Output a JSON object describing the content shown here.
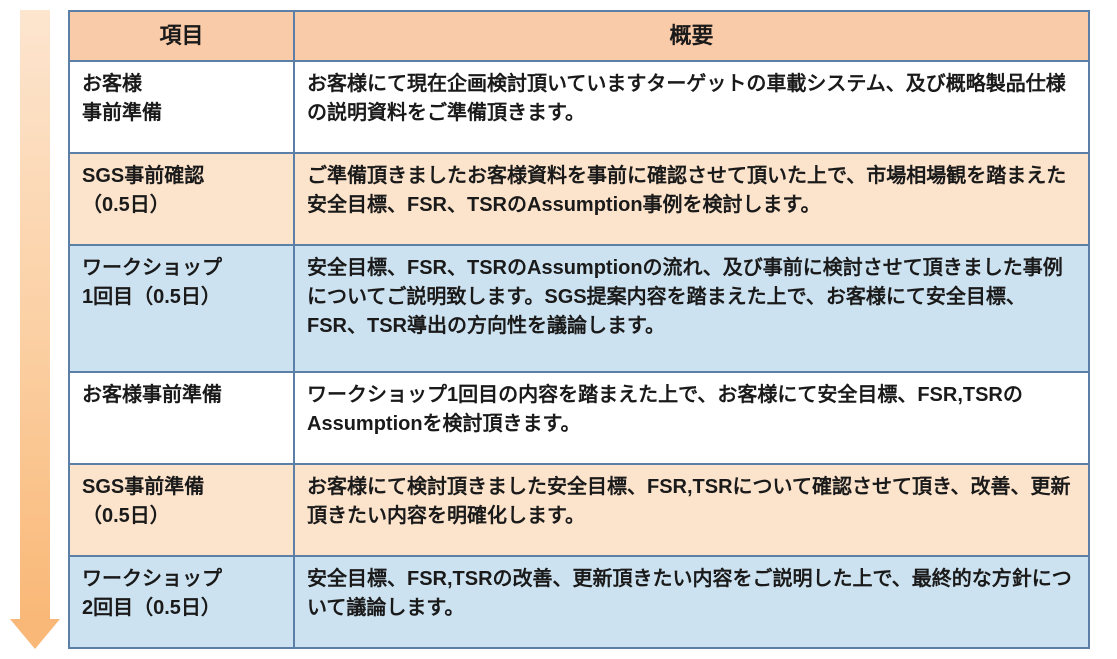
{
  "table": {
    "border_color": "#5b7fa6",
    "header_bg": "#f9cba8",
    "row_colors": {
      "white": "#ffffff",
      "peach": "#fce3cc",
      "blue": "#cde2f0"
    },
    "text_color": "#1a1a1a",
    "header_fontsize": 22,
    "body_fontsize": 20,
    "col1_width": 225,
    "col2_width": 795,
    "columns": [
      "項目",
      "概要"
    ],
    "rows": [
      {
        "bg": "white",
        "c1": "お客様\n事前準備",
        "c2": "お客様にて現在企画検討頂いていますターゲットの車載システム、及び概略製品仕様の説明資料をご準備頂きます。"
      },
      {
        "bg": "peach",
        "c1": "SGS事前確認\n（0.5日）",
        "c2": "ご準備頂きましたお客様資料を事前に確認させて頂いた上で、市場相場観を踏まえた安全目標、FSR、TSRのAssumption事例を検討します。"
      },
      {
        "bg": "blue",
        "c1": "ワークショップ\n1回目（0.5日）",
        "c2": "安全目標、FSR、TSRのAssumptionの流れ、及び事前に検討させて頂きました事例についてご説明致します。SGS提案内容を踏まえた上で、お客様にて安全目標、FSR、TSR導出の方向性を議論します。"
      },
      {
        "bg": "white",
        "c1": "お客様事前準備",
        "c2": "ワークショップ1回目の内容を踏まえた上で、お客様にて安全目標、FSR,TSRのAssumptionを検討頂きます。"
      },
      {
        "bg": "peach",
        "c1": "SGS事前準備\n（0.5日）",
        "c2": "お客様にて検討頂きました安全目標、FSR,TSRについて確認させて頂き、改善、更新頂きたい内容を明確化します。"
      },
      {
        "bg": "blue",
        "c1": "ワークショップ\n2回目（0.5日）",
        "c2": "安全目標、FSR,TSRの改善、更新頂きたい内容をご説明した上で、最終的な方針について議論します。"
      }
    ]
  },
  "arrow": {
    "shaft_width": 30,
    "head_width": 50,
    "head_height": 30,
    "gradient_top": "#fde5cf",
    "gradient_mid": "#fbcfa2",
    "gradient_bottom": "#f9b877"
  }
}
